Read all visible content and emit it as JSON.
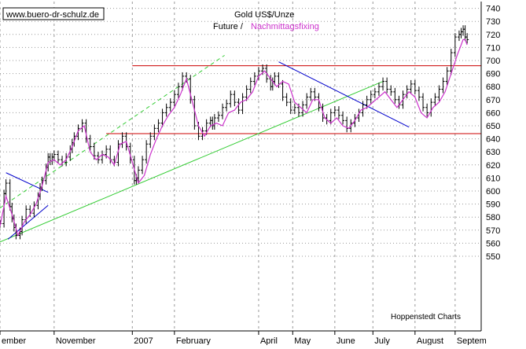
{
  "header": {
    "site_label": "www.buero-dr-schulz.de",
    "title": "Gold US$/Unze",
    "subtitle_future": "Future /",
    "subtitle_fixing": "Nachmittagsfixing",
    "credit": "Hoppenstedt Charts"
  },
  "colors": {
    "bars": "#000000",
    "fixing_line": "#cc33cc",
    "support_resistance": "#cc0000",
    "uptrend_channel": "#33cc33",
    "downtrend_lines": "#0000cc",
    "grid": "#999999",
    "title_text": "#000000",
    "fixing_text": "#cc33cc"
  },
  "chart_data": {
    "type": "line",
    "title": "Gold US$/Unze",
    "subtitle": "Future / Nachmittagsfixing",
    "ylim": [
      545,
      745
    ],
    "ytick_values": [
      550,
      560,
      570,
      580,
      590,
      600,
      610,
      620,
      630,
      640,
      650,
      660,
      670,
      680,
      690,
      700,
      710,
      720,
      730,
      740
    ],
    "yticks": [
      "550",
      "560",
      "570",
      "580",
      "590",
      "600",
      "610",
      "620",
      "630",
      "640",
      "650",
      "660",
      "670",
      "680",
      "690",
      "700",
      "710",
      "720",
      "730",
      "740"
    ],
    "x_index_range": [
      0,
      240
    ],
    "x_tick_labels": [
      {
        "label": "ember",
        "x": 0
      },
      {
        "label": "November",
        "x": 27
      },
      {
        "label": "2007",
        "x": 66
      },
      {
        "label": "February",
        "x": 87
      },
      {
        "label": "April",
        "x": 129
      },
      {
        "label": "May",
        "x": 146
      },
      {
        "label": "June",
        "x": 167
      },
      {
        "label": "July",
        "x": 186
      },
      {
        "label": "August",
        "x": 207
      },
      {
        "label": "Septem",
        "x": 227
      }
    ],
    "grid": true,
    "series": [
      {
        "name": "Future",
        "style": "ohlc-bars",
        "x": [
          0,
          2,
          3,
          5,
          6,
          7,
          8,
          10,
          11,
          13,
          15,
          17,
          19,
          20,
          21,
          23,
          24,
          25,
          26,
          27,
          29,
          31,
          33,
          35,
          36,
          37,
          39,
          41,
          43,
          45,
          47,
          49,
          51,
          53,
          55,
          57,
          59,
          61,
          63,
          65,
          67,
          68,
          69,
          71,
          73,
          75,
          77,
          79,
          81,
          83,
          85,
          87,
          89,
          91,
          93,
          95,
          97,
          99,
          101,
          103,
          105,
          106,
          107,
          109,
          111,
          113,
          115,
          117,
          119,
          121,
          123,
          125,
          127,
          129,
          131,
          133,
          135,
          136,
          137,
          139,
          141,
          143,
          145,
          147,
          149,
          151,
          153,
          155,
          157,
          159,
          161,
          163,
          165,
          167,
          169,
          171,
          173,
          175,
          177,
          179,
          181,
          183,
          185,
          187,
          189,
          191,
          193,
          195,
          197,
          199,
          201,
          203,
          205,
          207,
          209,
          211,
          213,
          215,
          217,
          219,
          221,
          223,
          225,
          227,
          229,
          230,
          231,
          232,
          233
        ],
        "values": [
          575,
          598,
          606,
          588,
          579,
          572,
          566,
          569,
          578,
          586,
          583,
          589,
          596,
          603,
          608,
          618,
          626,
          623,
          626,
          628,
          624,
          622,
          626,
          632,
          637,
          642,
          648,
          652,
          640,
          634,
          627,
          624,
          628,
          632,
          624,
          622,
          636,
          642,
          634,
          624,
          608,
          610,
          616,
          624,
          636,
          642,
          648,
          652,
          660,
          664,
          668,
          674,
          680,
          688,
          686,
          670,
          650,
          642,
          646,
          652,
          654,
          650,
          656,
          658,
          664,
          667,
          674,
          668,
          662,
          672,
          678,
          684,
          688,
          692,
          694,
          686,
          680,
          684,
          688,
          682,
          672,
          668,
          662,
          664,
          660,
          666,
          672,
          676,
          672,
          664,
          656,
          654,
          660,
          662,
          658,
          654,
          648,
          652,
          656,
          660,
          666,
          670,
          674,
          676,
          680,
          684,
          678,
          676,
          670,
          666,
          674,
          678,
          682,
          677,
          672,
          664,
          660,
          668,
          672,
          678,
          684,
          692,
          706,
          718,
          720,
          722,
          724,
          718,
          716
        ]
      },
      {
        "name": "Nachmittagsfixing",
        "style": "line",
        "x": [
          0,
          3,
          6,
          9,
          12,
          15,
          18,
          21,
          24,
          27,
          30,
          33,
          36,
          39,
          42,
          45,
          48,
          51,
          54,
          57,
          60,
          63,
          66,
          69,
          72,
          75,
          78,
          81,
          84,
          87,
          90,
          93,
          96,
          99,
          102,
          105,
          108,
          111,
          114,
          117,
          120,
          123,
          126,
          129,
          132,
          135,
          138,
          141,
          144,
          147,
          150,
          153,
          156,
          159,
          162,
          165,
          168,
          171,
          174,
          177,
          180,
          183,
          186,
          189,
          192,
          195,
          198,
          201,
          204,
          207,
          210,
          213,
          216,
          219,
          222,
          225,
          228,
          230,
          231,
          232,
          233
        ],
        "values": [
          573,
          596,
          582,
          566,
          576,
          582,
          590,
          604,
          622,
          624,
          620,
          624,
          634,
          646,
          650,
          630,
          624,
          628,
          626,
          620,
          636,
          638,
          622,
          606,
          612,
          628,
          640,
          650,
          658,
          664,
          674,
          686,
          668,
          650,
          642,
          650,
          652,
          650,
          660,
          662,
          668,
          670,
          676,
          688,
          692,
          686,
          680,
          684,
          682,
          668,
          664,
          660,
          670,
          670,
          656,
          652,
          656,
          650,
          648,
          654,
          662,
          664,
          668,
          672,
          676,
          670,
          664,
          670,
          676,
          672,
          660,
          656,
          664,
          668,
          676,
          690,
          704,
          712,
          716,
          716,
          712
        ]
      }
    ],
    "reference_lines": {
      "resistance_value": 696,
      "support_value": 644,
      "uptrend_channel": {
        "lower": {
          "from": [
            0,
            561
          ],
          "to": [
            191,
            684
          ]
        },
        "upper": {
          "from": [
            0,
            587
          ],
          "to": [
            112,
            704
          ]
        }
      },
      "downtrend_lines": [
        {
          "from": [
            3,
            614
          ],
          "to": [
            24,
            599
          ]
        },
        {
          "from": [
            4,
            563
          ],
          "to": [
            24,
            589
          ]
        },
        {
          "from": [
            139,
            699
          ],
          "to": [
            204,
            649
          ]
        }
      ]
    }
  }
}
